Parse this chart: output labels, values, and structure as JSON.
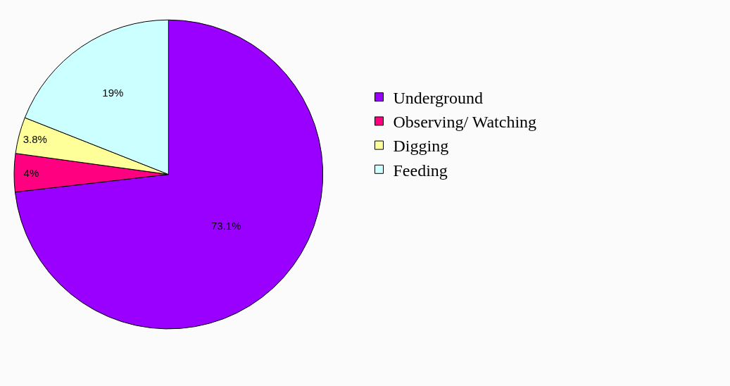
{
  "chart_data": {
    "type": "pie",
    "categories": [
      "Underground",
      "Observing/ Watching",
      "Digging",
      "Feeding"
    ],
    "values": [
      73.1,
      4,
      3.8,
      19
    ],
    "colors": [
      "#9900ff",
      "#ff0080",
      "#ffff99",
      "#ccffff"
    ],
    "value_labels": [
      "73.1%",
      "4%",
      "3.8%",
      "19%"
    ],
    "legend": "right"
  }
}
